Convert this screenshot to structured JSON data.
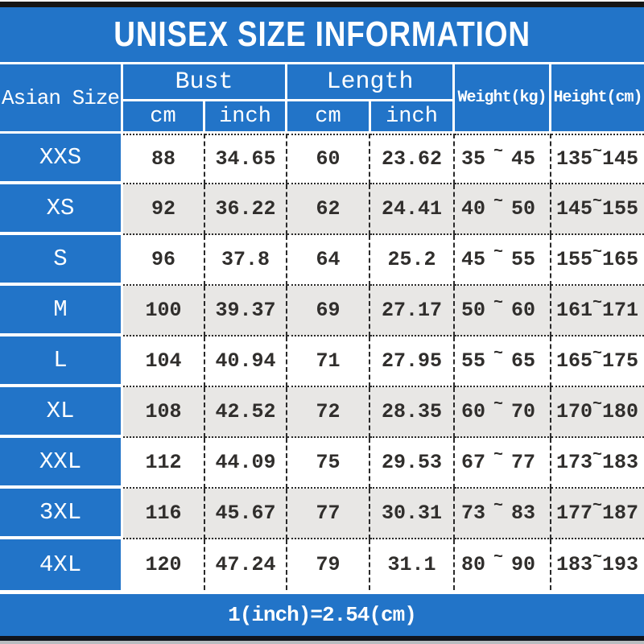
{
  "title": "UNISEX SIZE INFORMATION",
  "footer_note": "1(inch)=2.54(cm)",
  "tilde": "~",
  "header": {
    "corner": "Asian Size",
    "bust": "Bust",
    "length": "Length",
    "cm": "cm",
    "inch": "inch",
    "weight": "Weight(kg)",
    "height": "Height(cm)"
  },
  "rows": [
    {
      "size": "XXS",
      "bust_cm": "88",
      "bust_inch": "34.65",
      "len_cm": "60",
      "len_inch": "23.62",
      "weight_min": "35",
      "weight_max": "45",
      "height_min": "135",
      "height_max": "145"
    },
    {
      "size": "XS",
      "bust_cm": "92",
      "bust_inch": "36.22",
      "len_cm": "62",
      "len_inch": "24.41",
      "weight_min": "40",
      "weight_max": "50",
      "height_min": "145",
      "height_max": "155"
    },
    {
      "size": "S",
      "bust_cm": "96",
      "bust_inch": "37.8",
      "len_cm": "64",
      "len_inch": "25.2",
      "weight_min": "45",
      "weight_max": "55",
      "height_min": "155",
      "height_max": "165"
    },
    {
      "size": "M",
      "bust_cm": "100",
      "bust_inch": "39.37",
      "len_cm": "69",
      "len_inch": "27.17",
      "weight_min": "50",
      "weight_max": "60",
      "height_min": "161",
      "height_max": "171"
    },
    {
      "size": "L",
      "bust_cm": "104",
      "bust_inch": "40.94",
      "len_cm": "71",
      "len_inch": "27.95",
      "weight_min": "55",
      "weight_max": "65",
      "height_min": "165",
      "height_max": "175"
    },
    {
      "size": "XL",
      "bust_cm": "108",
      "bust_inch": "42.52",
      "len_cm": "72",
      "len_inch": "28.35",
      "weight_min": "60",
      "weight_max": "70",
      "height_min": "170",
      "height_max": "180"
    },
    {
      "size": "XXL",
      "bust_cm": "112",
      "bust_inch": "44.09",
      "len_cm": "75",
      "len_inch": "29.53",
      "weight_min": "67",
      "weight_max": "77",
      "height_min": "173",
      "height_max": "183"
    },
    {
      "size": "3XL",
      "bust_cm": "116",
      "bust_inch": "45.67",
      "len_cm": "77",
      "len_inch": "30.31",
      "weight_min": "73",
      "weight_max": "83",
      "height_min": "177",
      "height_max": "187"
    },
    {
      "size": "4XL",
      "bust_cm": "120",
      "bust_inch": "47.24",
      "len_cm": "79",
      "len_inch": "31.1",
      "weight_min": "80",
      "weight_max": "90",
      "height_min": "183",
      "height_max": "193"
    }
  ],
  "colors": {
    "header_blue": "#2274c8",
    "row_alt_gray": "#e8e7e5",
    "text_dark": "#302e2c",
    "bar_black": "#161616",
    "text_white": "#ffffff"
  }
}
